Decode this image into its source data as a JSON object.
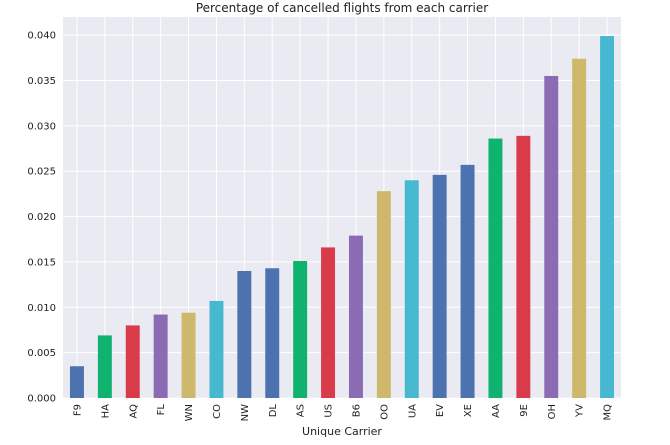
{
  "chart_data": {
    "type": "bar",
    "title": "Percentage of cancelled flights from each carrier",
    "xlabel": "Unique Carrier",
    "ylabel": "",
    "ylim": [
      0,
      0.042
    ],
    "yticks": [
      "0.000",
      "0.005",
      "0.010",
      "0.015",
      "0.020",
      "0.025",
      "0.030",
      "0.035",
      "0.040"
    ],
    "grid": true,
    "categories": [
      "F9",
      "HA",
      "AQ",
      "FL",
      "WN",
      "CO",
      "NW",
      "DL",
      "AS",
      "US",
      "B6",
      "OO",
      "UA",
      "EV",
      "XE",
      "AA",
      "9E",
      "OH",
      "YV",
      "MQ"
    ],
    "values": [
      0.0035,
      0.0069,
      0.008,
      0.0092,
      0.0094,
      0.0107,
      0.014,
      0.0143,
      0.0151,
      0.0166,
      0.0179,
      0.0228,
      0.024,
      0.0246,
      0.0257,
      0.0286,
      0.0289,
      0.0355,
      0.0374,
      0.0399
    ],
    "colors": [
      "#4c72b0",
      "#0fb26e",
      "#d93b4a",
      "#8c6bb5",
      "#ceb86c",
      "#46b8d0",
      "#4c72b0",
      "#4c72b0",
      "#0fb26e",
      "#d93b4a",
      "#8c6bb5",
      "#ceb86c",
      "#46b8d0",
      "#4c72b0",
      "#4c72b0",
      "#0fb26e",
      "#d93b4a",
      "#8c6bb5",
      "#ceb86c",
      "#46b8d0"
    ],
    "background": "#eaeaf2",
    "gridcolor": "#ffffff"
  }
}
